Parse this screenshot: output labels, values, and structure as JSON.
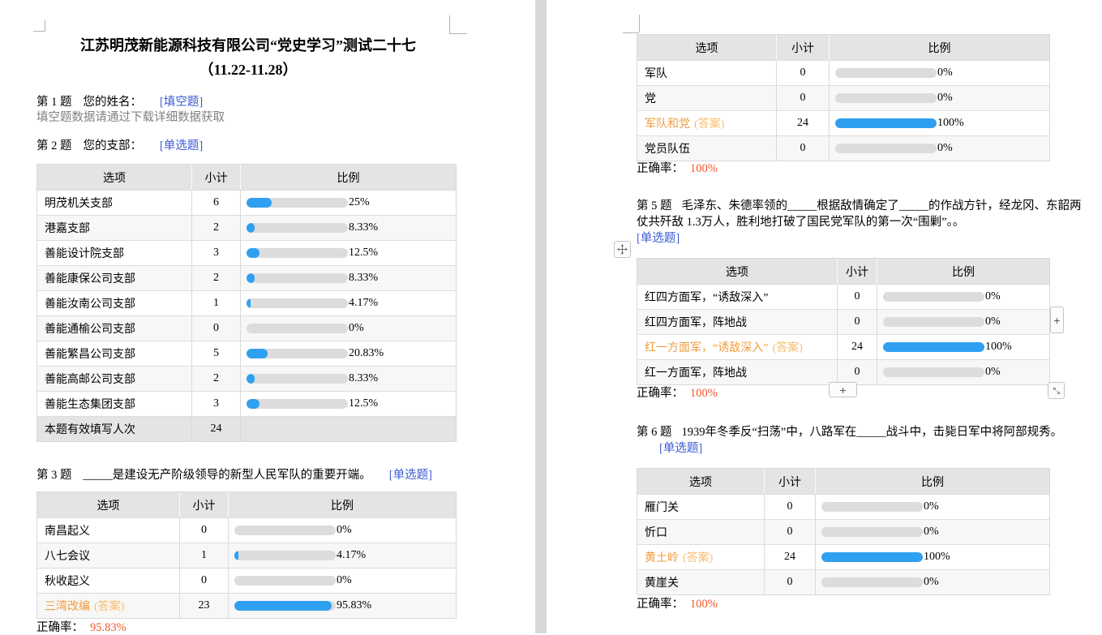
{
  "headers": {
    "option": "选项",
    "count": "小计",
    "ratio": "比例"
  },
  "controls": {
    "plus_row": "+",
    "plus_col": "+"
  },
  "left": {
    "title_line1": "江苏明茂新能源科技有限公司“党史学习”测试二十七",
    "title_line2": "（11.22-11.28）",
    "q1": {
      "num": "第 1 题",
      "text": "您的姓名：",
      "tag": "[填空题]",
      "note": "填空题数据请通过下载详细数据获取"
    },
    "q2": {
      "num": "第 2 题",
      "text": "您的支部：",
      "tag": "[单选题]"
    },
    "table_q2": {
      "rows": [
        {
          "option": "明茂机关支部",
          "count": "6",
          "pct": 25,
          "pct_label": "25%"
        },
        {
          "option": "港嘉支部",
          "count": "2",
          "pct": 8.33,
          "pct_label": "8.33%"
        },
        {
          "option": "善能设计院支部",
          "count": "3",
          "pct": 12.5,
          "pct_label": "12.5%"
        },
        {
          "option": "善能康保公司支部",
          "count": "2",
          "pct": 8.33,
          "pct_label": "8.33%"
        },
        {
          "option": "善能汝南公司支部",
          "count": "1",
          "pct": 4.17,
          "pct_label": "4.17%"
        },
        {
          "option": "善能通榆公司支部",
          "count": "0",
          "pct": 0,
          "pct_label": "0%"
        },
        {
          "option": "善能繁昌公司支部",
          "count": "5",
          "pct": 20.83,
          "pct_label": "20.83%"
        },
        {
          "option": "善能高邮公司支部",
          "count": "2",
          "pct": 8.33,
          "pct_label": "8.33%"
        },
        {
          "option": "善能生态集团支部",
          "count": "3",
          "pct": 12.5,
          "pct_label": "12.5%"
        }
      ],
      "footer_label": "本题有效填写人次",
      "footer_count": "24"
    },
    "q3": {
      "num": "第 3 题",
      "text": "_____是建设无产阶级领导的新型人民军队的重要开端。",
      "tag": "[单选题]"
    },
    "table_q3": {
      "rows": [
        {
          "option": "南昌起义",
          "count": "0",
          "pct": 0,
          "pct_label": "0%"
        },
        {
          "option": "八七会议",
          "count": "1",
          "pct": 4.17,
          "pct_label": "4.17%"
        },
        {
          "option": "秋收起义",
          "count": "0",
          "pct": 0,
          "pct_label": "0%"
        },
        {
          "option": "三湾改编",
          "count": "23",
          "pct": 95.83,
          "pct_label": "95.83%",
          "answer_tag": "(答案)"
        }
      ]
    },
    "acc3": {
      "label": "正确率：",
      "value": "95.83%"
    }
  },
  "right": {
    "table_q4": {
      "rows": [
        {
          "option": "军队",
          "count": "0",
          "pct": 0,
          "pct_label": "0%"
        },
        {
          "option": "党",
          "count": "0",
          "pct": 0,
          "pct_label": "0%"
        },
        {
          "option": "军队和党",
          "count": "24",
          "pct": 100,
          "pct_label": "100%",
          "answer_tag": "(答案)"
        },
        {
          "option": "党员队伍",
          "count": "0",
          "pct": 0,
          "pct_label": "0%"
        }
      ]
    },
    "acc4": {
      "label": "正确率：",
      "value": "100%"
    },
    "q5": {
      "num": "第 5 题",
      "text": "毛泽东、朱德率领的_____根据敌情确定了_____的作战方针，经龙冈、东韶两仗共歼敌 1.3万人，胜利地打破了国民党军队的第一次“围剿”。。",
      "tag": "[单选题]"
    },
    "table_q5": {
      "rows": [
        {
          "option": "红四方面军，“诱敌深入”",
          "count": "0",
          "pct": 0,
          "pct_label": "0%"
        },
        {
          "option": "红四方面军，阵地战",
          "count": "0",
          "pct": 0,
          "pct_label": "0%"
        },
        {
          "option": "红一方面军，“诱敌深入”",
          "count": "24",
          "pct": 100,
          "pct_label": "100%",
          "answer_tag": "(答案)"
        },
        {
          "option": "红一方面军，阵地战",
          "count": "0",
          "pct": 0,
          "pct_label": "0%"
        }
      ]
    },
    "acc5": {
      "label": "正确率：",
      "value": "100%"
    },
    "q6": {
      "num": "第 6 题",
      "text": "1939年冬季反“扫荡”中，八路军在_____战斗中，击毙日军中将阿部规秀。",
      "tag": "[单选题]"
    },
    "table_q6": {
      "rows": [
        {
          "option": "雁门关",
          "count": "0",
          "pct": 0,
          "pct_label": "0%"
        },
        {
          "option": "忻口",
          "count": "0",
          "pct": 0,
          "pct_label": "0%"
        },
        {
          "option": "黄土岭",
          "count": "24",
          "pct": 100,
          "pct_label": "100%",
          "answer_tag": "(答案)"
        },
        {
          "option": "黄崖关",
          "count": "0",
          "pct": 0,
          "pct_label": "0%"
        }
      ]
    },
    "acc6": {
      "label": "正确率：",
      "value": "100%"
    }
  }
}
